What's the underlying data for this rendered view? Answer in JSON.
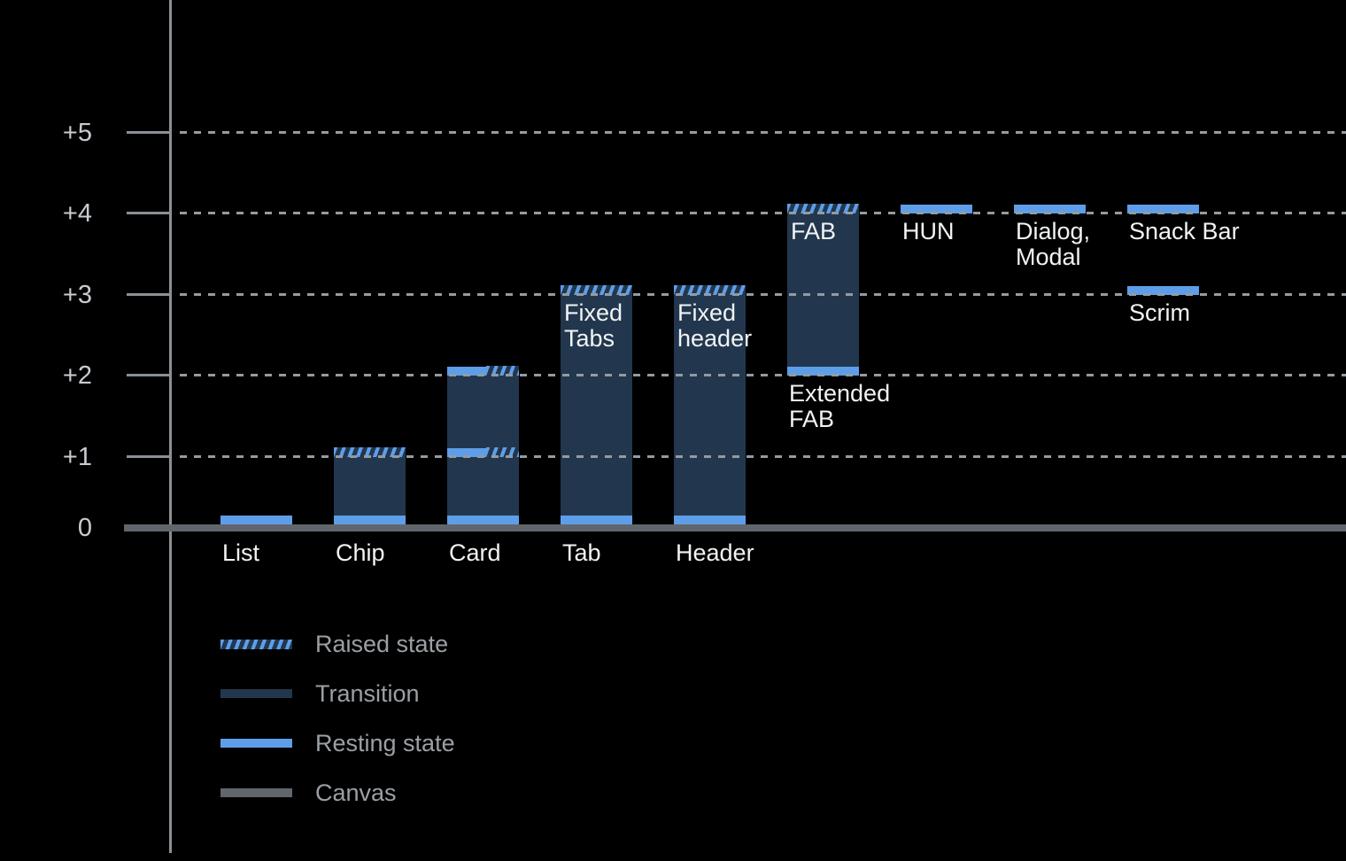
{
  "chart_data": {
    "type": "bar",
    "title": "",
    "y_axis": {
      "tick_labels": [
        "+5",
        "+4",
        "+3",
        "+2",
        "+1",
        "0"
      ],
      "values": [
        5,
        4,
        3,
        2,
        1,
        0
      ],
      "ylim": [
        0,
        5.5
      ],
      "gridlines": "dotted-horizontal"
    },
    "categories": [
      "List",
      "Chip",
      "Card",
      "Tab",
      "Header",
      "Extended FAB",
      "HUN",
      "Dialog, Modal",
      "Snack Bar",
      "Scrim"
    ],
    "components": [
      {
        "name": "List",
        "col": 0,
        "resting_level": 0,
        "raised_level": null,
        "body": null,
        "strips": [
          {
            "level": 0,
            "type": "resting"
          }
        ],
        "label": {
          "lines": [
            "List"
          ],
          "position": "canvas"
        }
      },
      {
        "name": "Chip",
        "col": 1,
        "resting_level": 0,
        "raised_level": 1,
        "body": [
          0,
          1
        ],
        "strips": [
          {
            "level": 0,
            "type": "resting"
          },
          {
            "level": 1,
            "type": "raised"
          }
        ],
        "label": {
          "lines": [
            "Chip"
          ],
          "position": "canvas"
        }
      },
      {
        "name": "Card",
        "col": 2,
        "resting_level": 0,
        "raised_level": 2,
        "body": [
          0,
          2
        ],
        "strips": [
          {
            "level": 0,
            "type": "resting"
          },
          {
            "level": 1,
            "type": "split"
          },
          {
            "level": 2,
            "type": "split"
          }
        ],
        "label": {
          "lines": [
            "Card"
          ],
          "position": "canvas"
        }
      },
      {
        "name": "Tab",
        "col": 3,
        "resting_level": 0,
        "raised_level": 3,
        "body": [
          0,
          3
        ],
        "strips": [
          {
            "level": 0,
            "type": "resting"
          },
          {
            "level": 3,
            "type": "raised"
          }
        ],
        "inner_label": [
          "Fixed",
          "Tabs"
        ],
        "label": {
          "lines": [
            "Tab"
          ],
          "position": "canvas"
        }
      },
      {
        "name": "Header",
        "col": 4,
        "resting_level": 0,
        "raised_level": 3,
        "body": [
          0,
          3
        ],
        "strips": [
          {
            "level": 0,
            "type": "resting"
          },
          {
            "level": 3,
            "type": "raised"
          }
        ],
        "inner_label": [
          "Fixed",
          "header"
        ],
        "label": {
          "lines": [
            "Header"
          ],
          "position": "canvas"
        }
      },
      {
        "name": "Extended FAB",
        "col": 5,
        "resting_level": 2,
        "raised_level": 4,
        "body": [
          2,
          4
        ],
        "strips": [
          {
            "level": 2,
            "type": "resting"
          },
          {
            "level": 4,
            "type": "raised"
          }
        ],
        "inner_label": [
          "FAB"
        ],
        "label": {
          "lines": [
            "Extended",
            "FAB"
          ],
          "position": "below",
          "level": 2
        }
      },
      {
        "name": "HUN",
        "col": 6,
        "resting_level": 4,
        "raised_level": null,
        "body": null,
        "strips": [
          {
            "level": 4,
            "type": "resting"
          }
        ],
        "label": {
          "lines": [
            "HUN"
          ],
          "position": "below",
          "level": 4
        }
      },
      {
        "name": "Dialog, Modal",
        "col": 7,
        "resting_level": 4,
        "raised_level": null,
        "body": null,
        "strips": [
          {
            "level": 4,
            "type": "resting"
          }
        ],
        "label": {
          "lines": [
            "Dialog,",
            "Modal"
          ],
          "position": "below",
          "level": 4
        }
      },
      {
        "name": "Snack Bar",
        "col": 8,
        "resting_level": 4,
        "raised_level": null,
        "body": null,
        "strips": [
          {
            "level": 4,
            "type": "resting"
          }
        ],
        "label": {
          "lines": [
            "Snack Bar"
          ],
          "position": "below",
          "level": 4
        }
      },
      {
        "name": "Scrim",
        "col": 8,
        "resting_level": 3,
        "raised_level": null,
        "body": null,
        "strips": [
          {
            "level": 3,
            "type": "resting"
          }
        ],
        "label": {
          "lines": [
            "Scrim"
          ],
          "position": "below",
          "level": 3
        }
      }
    ],
    "legend": [
      {
        "label": "Raised state",
        "swatch": "raised"
      },
      {
        "label": "Transition",
        "swatch": "transition"
      },
      {
        "label": "Resting state",
        "swatch": "resting"
      },
      {
        "label": "Canvas",
        "swatch": "canvas"
      }
    ],
    "colors": {
      "bg": "#000000",
      "resting": "#5E9EE8",
      "transition": "#22374E",
      "canvas": "#61666C",
      "axis": "#8A9096",
      "grid": "#949BA1",
      "axis-text": "#C8CCD0",
      "label-text": "#F1F3F4",
      "legend-text": "#9AA0A6"
    }
  }
}
